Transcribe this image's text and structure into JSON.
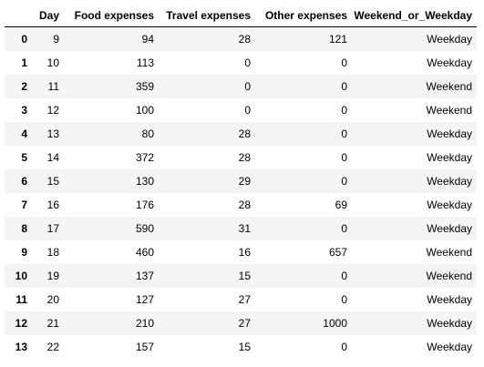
{
  "table": {
    "index_header": "",
    "columns": [
      "Day",
      "Food expenses",
      "Travel expenses",
      "Other expenses",
      "Weekend_or_Weekday"
    ],
    "rows": [
      {
        "index": "0",
        "cells": [
          "9",
          "94",
          "28",
          "121",
          "Weekday"
        ]
      },
      {
        "index": "1",
        "cells": [
          "10",
          "113",
          "0",
          "0",
          "Weekday"
        ]
      },
      {
        "index": "2",
        "cells": [
          "11",
          "359",
          "0",
          "0",
          "Weekend"
        ]
      },
      {
        "index": "3",
        "cells": [
          "12",
          "100",
          "0",
          "0",
          "Weekend"
        ]
      },
      {
        "index": "4",
        "cells": [
          "13",
          "80",
          "28",
          "0",
          "Weekday"
        ]
      },
      {
        "index": "5",
        "cells": [
          "14",
          "372",
          "28",
          "0",
          "Weekday"
        ]
      },
      {
        "index": "6",
        "cells": [
          "15",
          "130",
          "29",
          "0",
          "Weekday"
        ]
      },
      {
        "index": "7",
        "cells": [
          "16",
          "176",
          "28",
          "69",
          "Weekday"
        ]
      },
      {
        "index": "8",
        "cells": [
          "17",
          "590",
          "31",
          "0",
          "Weekday"
        ]
      },
      {
        "index": "9",
        "cells": [
          "18",
          "460",
          "16",
          "657",
          "Weekend"
        ]
      },
      {
        "index": "10",
        "cells": [
          "19",
          "137",
          "15",
          "0",
          "Weekend"
        ]
      },
      {
        "index": "11",
        "cells": [
          "20",
          "127",
          "27",
          "0",
          "Weekday"
        ]
      },
      {
        "index": "12",
        "cells": [
          "21",
          "210",
          "27",
          "1000",
          "Weekday"
        ]
      },
      {
        "index": "13",
        "cells": [
          "22",
          "157",
          "15",
          "0",
          "Weekday"
        ]
      }
    ]
  },
  "colors": {
    "stripe": "#f5f5f5",
    "background": "#ffffff",
    "header_rule": "#000000"
  }
}
